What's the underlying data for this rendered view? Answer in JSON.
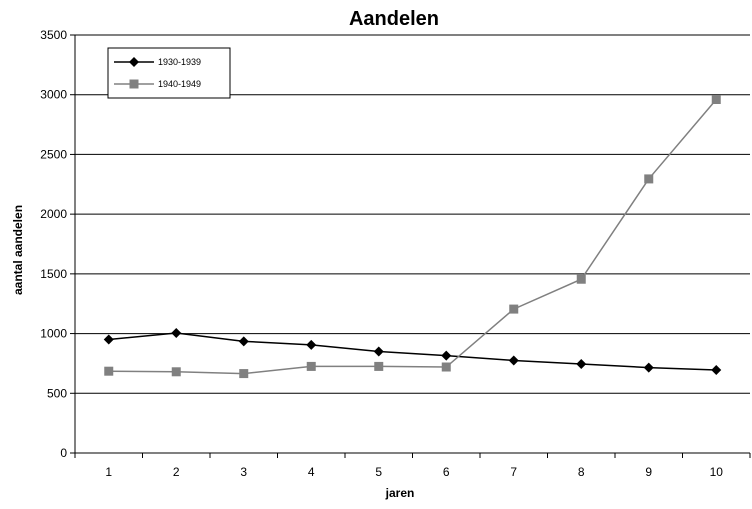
{
  "chart_data": {
    "type": "line",
    "title": "Aandelen",
    "xlabel": "jaren",
    "ylabel": "aantal aandelen",
    "categories": [
      "1",
      "2",
      "3",
      "4",
      "5",
      "6",
      "7",
      "8",
      "9",
      "10"
    ],
    "ylim": [
      0,
      3500
    ],
    "yticks": [
      "0",
      "500",
      "1000",
      "1500",
      "2000",
      "2500",
      "3000",
      "3500"
    ],
    "grid": true,
    "legend_position": "top-left",
    "series": [
      {
        "name": "1930-1939",
        "color": "#000000",
        "marker": "diamond",
        "values": [
          950,
          1005,
          935,
          905,
          850,
          815,
          775,
          745,
          715,
          695
        ]
      },
      {
        "name": "1940-1949",
        "color": "#808080",
        "marker": "square",
        "values": [
          685,
          680,
          665,
          725,
          725,
          720,
          1205,
          1455,
          2295,
          2960
        ]
      }
    ]
  }
}
